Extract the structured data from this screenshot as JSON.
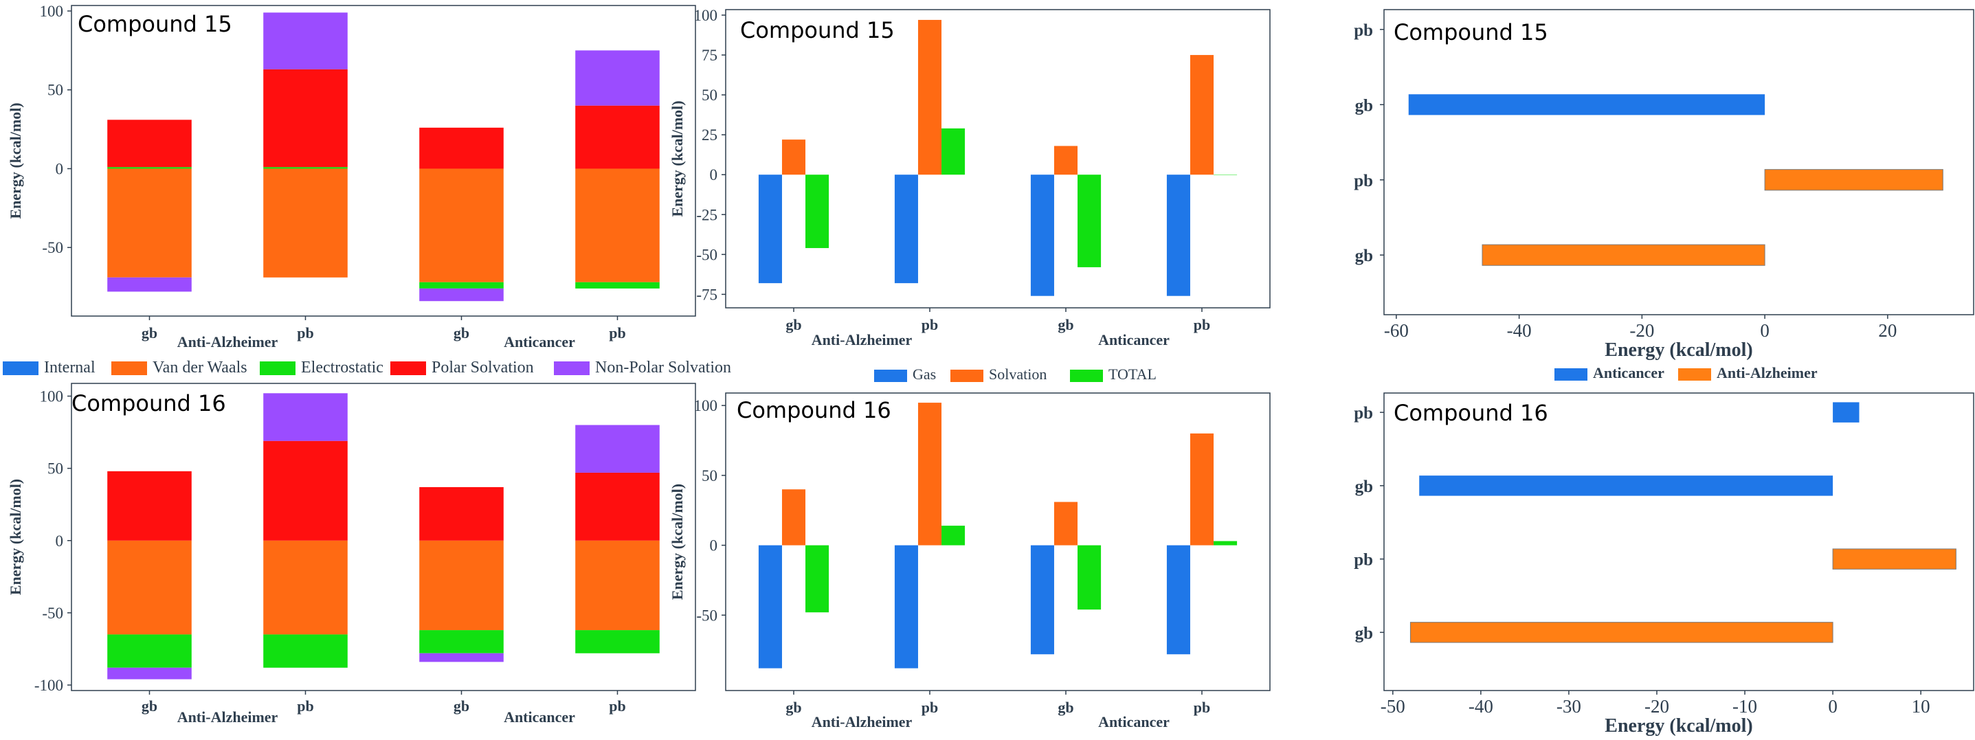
{
  "chart_data": [
    {
      "type": "bar",
      "subtype": "stacked",
      "title": "Compound 15",
      "ylabel": "Energy (kcal/mol)",
      "ylim": [
        -90,
        100
      ],
      "yticks": [
        100,
        50,
        0,
        -50
      ],
      "categories": [
        "gb",
        "pb",
        "gb",
        "pb"
      ],
      "groups": [
        "Anti-Alzheimer",
        "Anticancer"
      ],
      "series": [
        {
          "name": "Internal",
          "color": "#1f77e8",
          "values": [
            0,
            0,
            0,
            0
          ]
        },
        {
          "name": "Van der Waals",
          "color": "#ff6a13",
          "values": [
            -69,
            -69,
            -72,
            -72
          ]
        },
        {
          "name": "Electrostatic",
          "color": "#11e011",
          "values": [
            1,
            1,
            -4,
            -4
          ]
        },
        {
          "name": "Polar Solvation",
          "color": "#ff0f0f",
          "values": [
            30,
            62,
            26,
            40
          ]
        },
        {
          "name": "Non-Polar Solvation",
          "color": "#9b4cff",
          "values": [
            -9,
            36,
            -8,
            35
          ]
        }
      ]
    },
    {
      "type": "bar",
      "subtype": "grouped",
      "title": "Compound 15",
      "ylabel": "Energy (kcal/mol)",
      "ylim": [
        -80,
        100
      ],
      "yticks": [
        100,
        75,
        50,
        25,
        0,
        -25,
        -50,
        -75
      ],
      "categories": [
        "gb",
        "pb",
        "gb",
        "pb"
      ],
      "groups": [
        "Anti-Alzheimer",
        "Anticancer"
      ],
      "series": [
        {
          "name": "Gas",
          "color": "#1f77e8",
          "values": [
            -68,
            -68,
            -76,
            -76
          ]
        },
        {
          "name": "Solvation",
          "color": "#ff6a13",
          "values": [
            22,
            97,
            18,
            75
          ]
        },
        {
          "name": "TOTAL",
          "color": "#11e011",
          "values": [
            -46,
            29,
            -58,
            0
          ]
        }
      ]
    },
    {
      "type": "bar",
      "subtype": "horizontal",
      "title": "Compound 15",
      "xlabel": "Energy (kcal/mol)",
      "xlim": [
        -62,
        34
      ],
      "xticks": [
        -60,
        -40,
        -20,
        0,
        20
      ],
      "categories": [
        "pb",
        "gb",
        "pb",
        "gb"
      ],
      "series": [
        {
          "name": "Anticancer",
          "color": "#1f77e8",
          "values": [
            0,
            -58,
            null,
            null
          ]
        },
        {
          "name": "Anti-Alzheimer",
          "color": "#ff7f14",
          "values": [
            null,
            null,
            29,
            -46
          ]
        }
      ]
    },
    {
      "type": "bar",
      "subtype": "stacked",
      "title": "Compound 16",
      "ylim": [
        -100,
        105
      ],
      "yticks": [
        100,
        50,
        0,
        -50,
        -100
      ],
      "ylabel": "Energy (kcal/mol)",
      "categories": [
        "gb",
        "pb",
        "gb",
        "pb"
      ],
      "groups": [
        "Anti-Alzheimer",
        "Anticancer"
      ],
      "series": [
        {
          "name": "Internal",
          "color": "#1f77e8",
          "values": [
            0,
            0,
            0,
            0
          ]
        },
        {
          "name": "Van der Waals",
          "color": "#ff6a13",
          "values": [
            -65,
            -65,
            -62,
            -62
          ]
        },
        {
          "name": "Electrostatic",
          "color": "#11e011",
          "values": [
            -23,
            -23,
            -16,
            -16
          ]
        },
        {
          "name": "Polar Solvation",
          "color": "#ff0f0f",
          "values": [
            48,
            69,
            37,
            47
          ]
        },
        {
          "name": "Non-Polar Solvation",
          "color": "#9b4cff",
          "values": [
            -8,
            33,
            -6,
            33
          ]
        }
      ]
    },
    {
      "type": "bar",
      "subtype": "grouped",
      "title": "Compound 16",
      "ylabel": "Energy (kcal/mol)",
      "ylim": [
        -100,
        105
      ],
      "yticks": [
        100,
        50,
        0,
        -50
      ],
      "categories": [
        "gb",
        "pb",
        "gb",
        "pb"
      ],
      "groups": [
        "Anti-Alzheimer",
        "Anticancer"
      ],
      "series": [
        {
          "name": "Gas",
          "color": "#1f77e8",
          "values": [
            -88,
            -88,
            -78,
            -78
          ]
        },
        {
          "name": "Solvation",
          "color": "#ff6a13",
          "values": [
            40,
            102,
            31,
            80
          ]
        },
        {
          "name": "TOTAL",
          "color": "#11e011",
          "values": [
            -48,
            14,
            -46,
            3
          ]
        }
      ]
    },
    {
      "type": "bar",
      "subtype": "horizontal",
      "title": "Compound 16",
      "xlabel": "Energy (kcal/mol)",
      "xlim": [
        -51,
        16
      ],
      "xticks": [
        -50,
        -40,
        -30,
        -20,
        -10,
        0,
        10
      ],
      "categories": [
        "pb",
        "gb",
        "pb",
        "gb"
      ],
      "series": [
        {
          "name": "Anticancer",
          "color": "#1f77e8",
          "values": [
            3,
            -47,
            null,
            null
          ]
        },
        {
          "name": "Anti-Alzheimer",
          "color": "#ff7f14",
          "values": [
            null,
            null,
            14,
            -48
          ]
        }
      ]
    }
  ],
  "legends": {
    "stacked": [
      "Internal",
      "Van der Waals",
      "Electrostatic",
      "Polar Solvation",
      "Non-Polar Solvation"
    ],
    "grouped": [
      "Gas",
      "Solvation",
      "TOTAL"
    ],
    "horizontal": [
      "Anticancer",
      "Anti-Alzheimer"
    ]
  },
  "colors": {
    "Internal": "#1f77e8",
    "Van der Waals": "#ff6a13",
    "Electrostatic": "#11e011",
    "Polar Solvation": "#ff0f0f",
    "Non-Polar Solvation": "#9b4cff",
    "Gas": "#1f77e8",
    "Solvation": "#ff6a13",
    "TOTAL": "#11e011",
    "Anticancer": "#1f77e8",
    "Anti-Alzheimer": "#ff7f14"
  }
}
